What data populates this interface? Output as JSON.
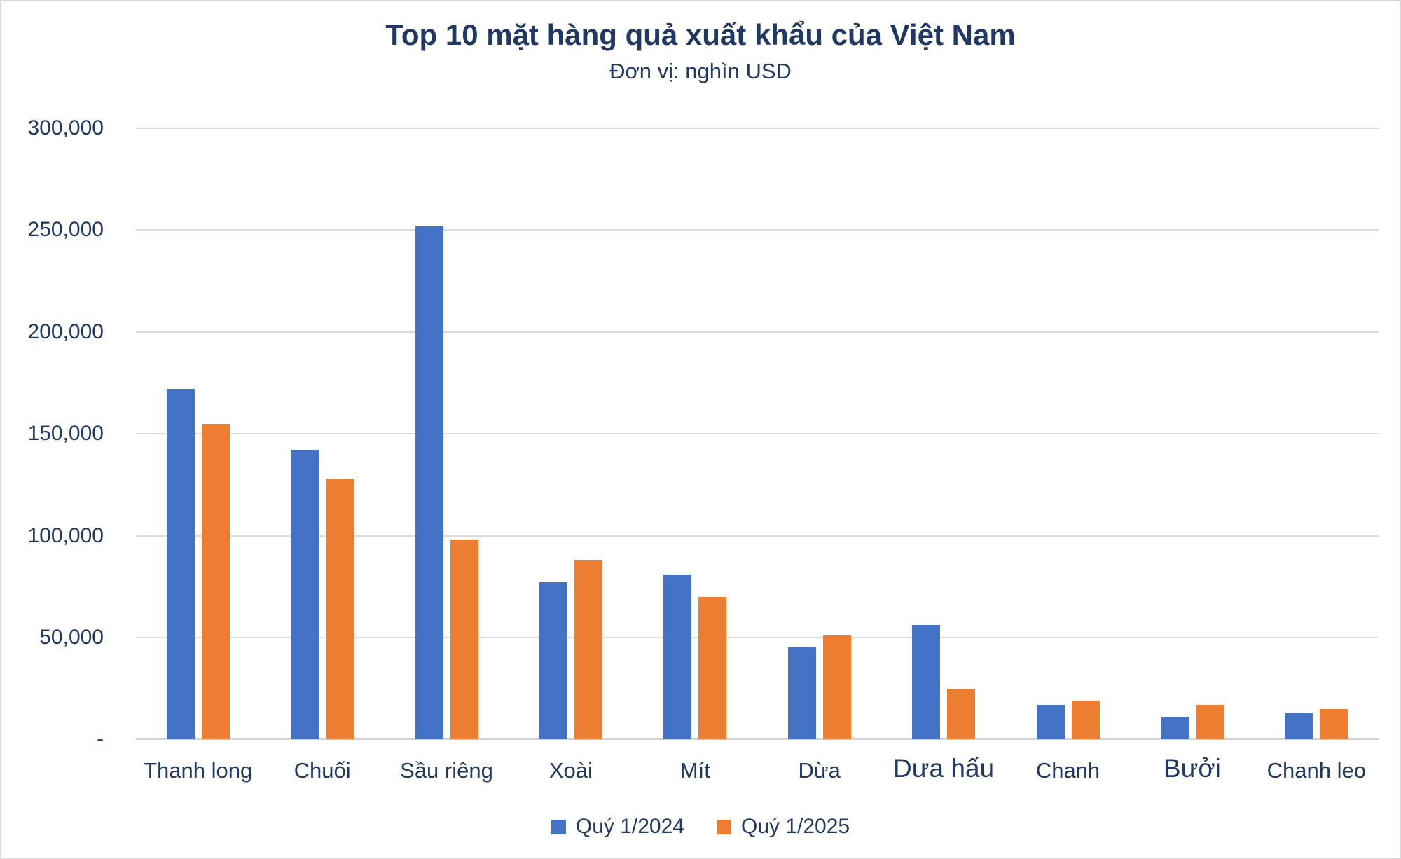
{
  "page": {
    "background": "#ffffff",
    "frame_border_color": "#d9d9d9"
  },
  "chart": {
    "text_color": "#1f3864",
    "gridline_color": "#dcdcdc",
    "axis_line_color": "#d2d2d2"
  },
  "chart_data": {
    "type": "bar",
    "title": "Top 10 mặt hàng quả xuất khẩu của Việt Nam",
    "subtitle": "Đơn vị: nghìn USD",
    "unit": "nghìn USD",
    "categories": [
      "Thanh long",
      "Chuối",
      "Sầu riêng",
      "Xoài",
      "Mít",
      "Dừa",
      "Dưa hấu",
      "Chanh",
      "Bưởi",
      "Chanh leo"
    ],
    "emphasized_categories": [
      "Dưa hấu",
      "Bưởi"
    ],
    "series": [
      {
        "name": "Quý 1/2024",
        "color": "#4472c4",
        "values": [
          172000,
          142000,
          252000,
          77000,
          81000,
          45000,
          56000,
          17000,
          11000,
          13000
        ]
      },
      {
        "name": "Quý 1/2025",
        "color": "#ed7d31",
        "values": [
          155000,
          128000,
          98000,
          88000,
          70000,
          51000,
          25000,
          19000,
          17000,
          15000
        ]
      }
    ],
    "ylim": [
      0,
      300000
    ],
    "y_ticks": [
      {
        "value": 0,
        "label": "-"
      },
      {
        "value": 50000,
        "label": "50,000"
      },
      {
        "value": 100000,
        "label": "100,000"
      },
      {
        "value": 150000,
        "label": "150,000"
      },
      {
        "value": 200000,
        "label": "200,000"
      },
      {
        "value": 250000,
        "label": "250,000"
      },
      {
        "value": 300000,
        "label": "300,000"
      }
    ],
    "grid": true,
    "legend_position": "bottom"
  }
}
